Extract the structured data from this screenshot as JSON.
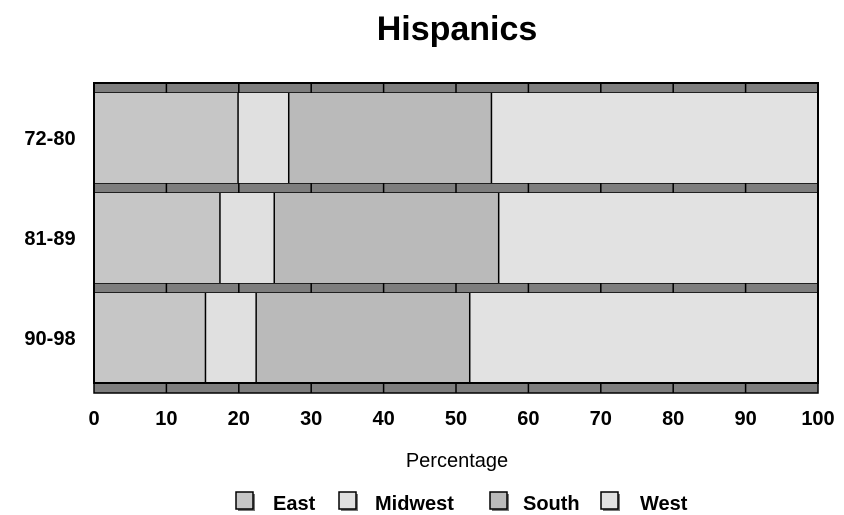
{
  "chart_data": {
    "type": "bar",
    "stacked": true,
    "orientation": "horizontal",
    "title": "Hispanics",
    "xlabel": "Percentage",
    "ylabel": "",
    "xlim": [
      0,
      100
    ],
    "x_ticks": [
      "0",
      "10",
      "20",
      "30",
      "40",
      "50",
      "60",
      "70",
      "80",
      "90",
      "100"
    ],
    "categories": [
      "72-80",
      "81-89",
      "90-98"
    ],
    "series": [
      {
        "name": "East",
        "values": [
          20,
          17.5,
          15.5
        ],
        "color": "#c6c6c6"
      },
      {
        "name": "Midwest",
        "values": [
          7,
          7.5,
          7
        ],
        "color": "#e0e0e0"
      },
      {
        "name": "South",
        "values": [
          28,
          31,
          29.5
        ],
        "color": "#bababa"
      },
      {
        "name": "West",
        "values": [
          45,
          44,
          48
        ],
        "color": "#e2e2e2"
      }
    ],
    "grid": true,
    "legend_position": "bottom",
    "colors": {
      "band": "#7e7e7e",
      "outline": "#000000"
    }
  }
}
